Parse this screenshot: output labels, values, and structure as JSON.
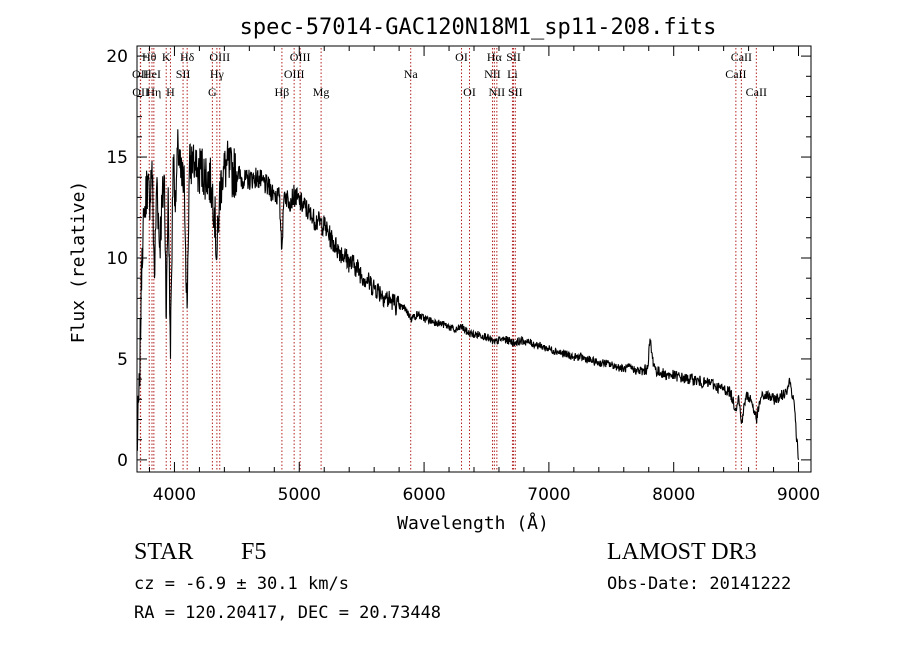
{
  "chart_data": {
    "type": "line",
    "title": "spec-57014-GAC120N18M1_sp11-208.fits",
    "xlabel": "Wavelength (Å)",
    "ylabel": "Flux (relative)",
    "xlim": [
      3700,
      9100
    ],
    "ylim": [
      -0.6,
      20.5
    ],
    "xticks": [
      4000,
      5000,
      6000,
      7000,
      8000,
      9000
    ],
    "xtick_labels": [
      "4000",
      "5000",
      "6000",
      "7000",
      "8000",
      "9000"
    ],
    "yticks": [
      0,
      5,
      10,
      15,
      20
    ],
    "ytick_labels": [
      "0",
      "5",
      "10",
      "15",
      "20"
    ],
    "series": [
      {
        "name": "spectrum",
        "x": [
          3700,
          3720,
          3740,
          3760,
          3780,
          3800,
          3820,
          3840,
          3860,
          3880,
          3900,
          3920,
          3935,
          3950,
          3968,
          3990,
          4010,
          4030,
          4050,
          4080,
          4101,
          4120,
          4150,
          4180,
          4210,
          4240,
          4270,
          4300,
          4320,
          4340,
          4360,
          4380,
          4420,
          4460,
          4500,
          4550,
          4600,
          4650,
          4700,
          4750,
          4800,
          4840,
          4861,
          4880,
          4920,
          4960,
          5000,
          5050,
          5100,
          5150,
          5200,
          5250,
          5300,
          5350,
          5400,
          5450,
          5500,
          5550,
          5600,
          5650,
          5700,
          5750,
          5800,
          5850,
          5895,
          5950,
          6000,
          6050,
          6100,
          6150,
          6200,
          6250,
          6300,
          6350,
          6400,
          6450,
          6500,
          6563,
          6620,
          6680,
          6720,
          6780,
          6850,
          6900,
          6950,
          7000,
          7050,
          7100,
          7150,
          7200,
          7250,
          7300,
          7350,
          7400,
          7450,
          7500,
          7550,
          7600,
          7650,
          7700,
          7750,
          7790,
          7810,
          7830,
          7860,
          7900,
          7950,
          8000,
          8050,
          8100,
          8150,
          8200,
          8250,
          8300,
          8350,
          8400,
          8450,
          8498,
          8520,
          8542,
          8580,
          8620,
          8662,
          8700,
          8750,
          8800,
          8850,
          8900,
          8930,
          8960,
          9000
        ],
        "y": [
          0.5,
          3.8,
          10.5,
          12.0,
          13.8,
          12.8,
          14.8,
          9.0,
          14.0,
          10.5,
          12.5,
          14.0,
          7.0,
          13.5,
          5.0,
          15.0,
          13.0,
          15.5,
          14.0,
          13.5,
          7.5,
          14.5,
          14.8,
          14.0,
          14.5,
          14.2,
          14.0,
          13.5,
          12.5,
          10.0,
          13.0,
          14.0,
          14.6,
          14.2,
          14.3,
          13.8,
          13.9,
          14.0,
          13.8,
          13.5,
          13.2,
          13.0,
          10.5,
          13.2,
          12.8,
          13.1,
          12.8,
          12.5,
          12.0,
          11.8,
          11.6,
          11.0,
          10.5,
          10.2,
          9.8,
          9.6,
          9.2,
          8.8,
          8.6,
          8.3,
          8.0,
          7.8,
          7.6,
          7.5,
          7.0,
          7.2,
          7.0,
          6.9,
          6.8,
          6.7,
          6.6,
          6.4,
          6.6,
          6.3,
          6.2,
          6.2,
          6.1,
          5.8,
          6.0,
          5.9,
          5.8,
          5.9,
          5.8,
          5.7,
          5.6,
          5.5,
          5.4,
          5.3,
          5.2,
          5.1,
          5.1,
          5.0,
          4.9,
          4.8,
          4.8,
          4.7,
          4.6,
          4.5,
          4.6,
          4.4,
          4.4,
          4.5,
          6.0,
          5.0,
          4.4,
          4.3,
          4.2,
          4.2,
          4.1,
          4.0,
          4.0,
          3.9,
          3.8,
          3.8,
          3.6,
          3.5,
          3.4,
          2.5,
          3.2,
          1.8,
          3.2,
          3.0,
          2.0,
          3.1,
          3.2,
          3.0,
          3.1,
          3.4,
          3.9,
          3.0,
          0.0
        ]
      }
    ],
    "lines": [
      {
        "label": "Hθ",
        "wave": 3798,
        "row": 1
      },
      {
        "label": "OII",
        "wave": 3727,
        "row": 2
      },
      {
        "label": "OII",
        "wave": 3729,
        "row": 3
      },
      {
        "label": "HeI",
        "wave": 3820,
        "row": 2
      },
      {
        "label": "Hη",
        "wave": 3835,
        "row": 3
      },
      {
        "label": "K",
        "wave": 3934,
        "row": 1
      },
      {
        "label": "SII",
        "wave": 4069,
        "row": 2
      },
      {
        "label": "H",
        "wave": 3968,
        "row": 3
      },
      {
        "label": "Hδ",
        "wave": 4102,
        "row": 1
      },
      {
        "label": "OIII",
        "wave": 4363,
        "row": 1
      },
      {
        "label": "Hγ",
        "wave": 4340,
        "row": 2
      },
      {
        "label": "G",
        "wave": 4304,
        "row": 3
      },
      {
        "label": "OIII",
        "wave": 5007,
        "row": 1
      },
      {
        "label": "OIII",
        "wave": 4959,
        "row": 2
      },
      {
        "label": "Hβ",
        "wave": 4861,
        "row": 3
      },
      {
        "label": "Mg",
        "wave": 5175,
        "row": 3
      },
      {
        "label": "Na",
        "wave": 5893,
        "row": 2
      },
      {
        "label": "OI",
        "wave": 6300,
        "row": 1
      },
      {
        "label": "OI",
        "wave": 6364,
        "row": 3
      },
      {
        "label": "Hα",
        "wave": 6563,
        "row": 1
      },
      {
        "label": "NII",
        "wave": 6548,
        "row": 2
      },
      {
        "label": "NII",
        "wave": 6583,
        "row": 3
      },
      {
        "label": "SII",
        "wave": 6717,
        "row": 1
      },
      {
        "label": "Li",
        "wave": 6708,
        "row": 2
      },
      {
        "label": "SII",
        "wave": 6731,
        "row": 3
      },
      {
        "label": "CaII",
        "wave": 8542,
        "row": 1
      },
      {
        "label": "CaII",
        "wave": 8498,
        "row": 2
      },
      {
        "label": "CaII",
        "wave": 8662,
        "row": 3
      }
    ],
    "line_color": "#b22222",
    "spectrum_color": "#000000"
  },
  "info": {
    "object_class": "STAR",
    "subclass": "F5",
    "redshift": "cz = -6.9 ± 30.1 km/s",
    "coords": "RA = 120.20417, DEC =  20.73448",
    "survey": "LAMOST DR3",
    "obs_date": "Obs-Date: 20141222"
  }
}
